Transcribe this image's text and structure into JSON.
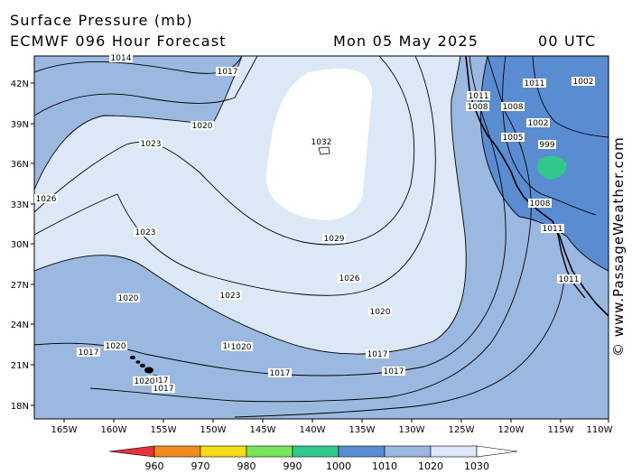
{
  "header": {
    "title": "Surface Pressure (mb)",
    "model": "ECMWF 096 Hour Forecast",
    "date": "Mon 05 May 2025",
    "time": "00 UTC"
  },
  "watermark": "© www.PassageWeather.com",
  "axes": {
    "lat_labels": [
      "42N",
      "39N",
      "36N",
      "33N",
      "30N",
      "27N",
      "24N",
      "21N",
      "18N"
    ],
    "lon_labels": [
      "165W",
      "160W",
      "155W",
      "150W",
      "145W",
      "140W",
      "135W",
      "130W",
      "125W",
      "120W",
      "115W",
      "110W"
    ]
  },
  "high_center": {
    "label": "1032"
  },
  "isobar_labels": [
    {
      "text": "1014"
    },
    {
      "text": "1017"
    },
    {
      "text": "1020"
    },
    {
      "text": "1023"
    },
    {
      "text": "1026"
    },
    {
      "text": "1023"
    },
    {
      "text": "1029"
    },
    {
      "text": "1026"
    },
    {
      "text": "1023"
    },
    {
      "text": "1020"
    },
    {
      "text": "1020"
    },
    {
      "text": "1023"
    },
    {
      "text": "1020"
    },
    {
      "text": "1017"
    },
    {
      "text": "1017"
    },
    {
      "text": "1020"
    },
    {
      "text": "1017"
    },
    {
      "text": "1017"
    },
    {
      "text": "1017"
    },
    {
      "text": "1020"
    },
    {
      "text": "1017"
    },
    {
      "text": "1011"
    },
    {
      "text": "1008"
    },
    {
      "text": "1005"
    },
    {
      "text": "1011"
    },
    {
      "text": "1002"
    },
    {
      "text": "1008"
    },
    {
      "text": "1011"
    },
    {
      "text": "1008"
    },
    {
      "text": "1011"
    },
    {
      "text": "1002"
    },
    {
      "text": "999"
    }
  ],
  "colorbar": {
    "labels": [
      "960",
      "970",
      "980",
      "990",
      "1000",
      "1010",
      "1020",
      "1030"
    ],
    "colors": [
      "#e8323c",
      "#f08c1e",
      "#f5dc14",
      "#78e65a",
      "#32c88c",
      "#5a8cd2",
      "#9ab8e0",
      "#dce8f6"
    ]
  },
  "colors": {
    "band_1020_1030": "#dce8f6",
    "band_1010_1020": "#9ab8e0",
    "band_1000_1010": "#5a8cd2",
    "band_990_1000": "#32c88c",
    "above_1030": "#ffffff"
  }
}
